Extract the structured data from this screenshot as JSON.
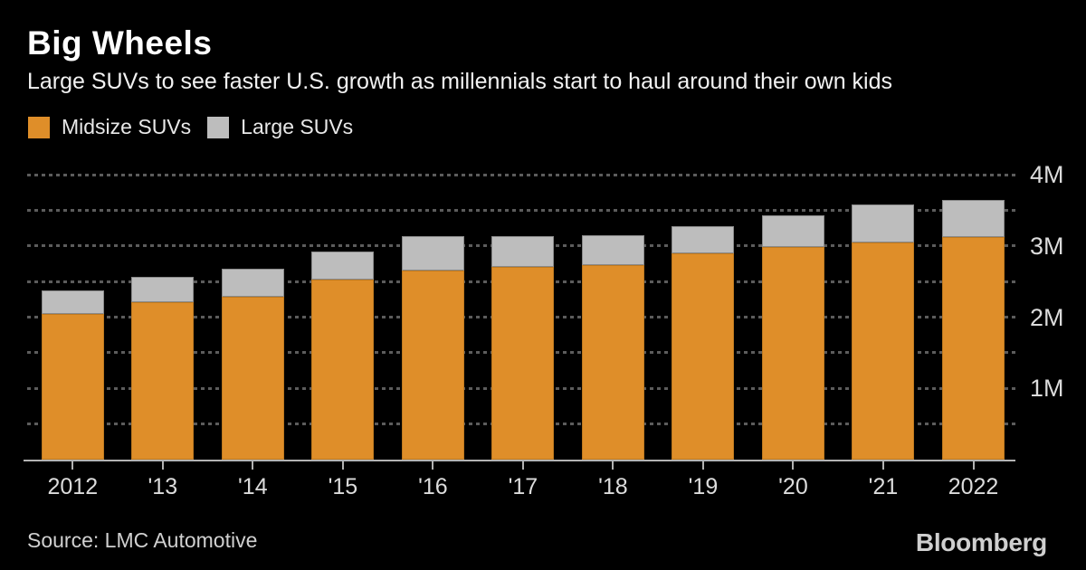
{
  "header": {
    "title": "Big Wheels",
    "subtitle": "Large SUVs to see faster U.S. growth as millennials start to haul around their own kids"
  },
  "footer": {
    "source": "Source: LMC Automotive",
    "brand": "Bloomberg"
  },
  "colors": {
    "background": "#000000",
    "midsize_orange": "#DF8E29",
    "large_gray": "#BDBDBD",
    "gridline": "#5C5C5C",
    "axis": "#B3B3B3",
    "axis_label": "#DCDCDC",
    "title": "#FFFFFF"
  },
  "chart_data": {
    "type": "bar",
    "stacked": true,
    "title": "Big Wheels",
    "subtitle": "Large SUVs to see faster U.S. growth as millennials start to haul around their own kids",
    "categories": [
      "2012",
      "'13",
      "'14",
      "'15",
      "'16",
      "'17",
      "'18",
      "'19",
      "'20",
      "'21",
      "2022"
    ],
    "series": [
      {
        "name": "Midsize SUVs",
        "color": "#DF8E29",
        "values": [
          2.05,
          2.21,
          2.29,
          2.53,
          2.66,
          2.7,
          2.73,
          2.9,
          2.99,
          3.05,
          3.12
        ]
      },
      {
        "name": "Large SUVs",
        "color": "#BDBDBD",
        "values": [
          0.32,
          0.35,
          0.39,
          0.39,
          0.48,
          0.44,
          0.42,
          0.38,
          0.44,
          0.53,
          0.53
        ]
      }
    ],
    "unit": "M",
    "xlabel": "",
    "ylabel": "",
    "ylim": [
      0,
      4
    ],
    "yticks": [
      {
        "value": 1,
        "label": "1M"
      },
      {
        "value": 2,
        "label": "2M"
      },
      {
        "value": 3,
        "label": "3M"
      },
      {
        "value": 4,
        "label": "4M"
      }
    ],
    "minor_grid_step": 0.5,
    "grid": "dotted-horizontal",
    "grid_side": "right-labels",
    "legend_position": "top-left"
  }
}
